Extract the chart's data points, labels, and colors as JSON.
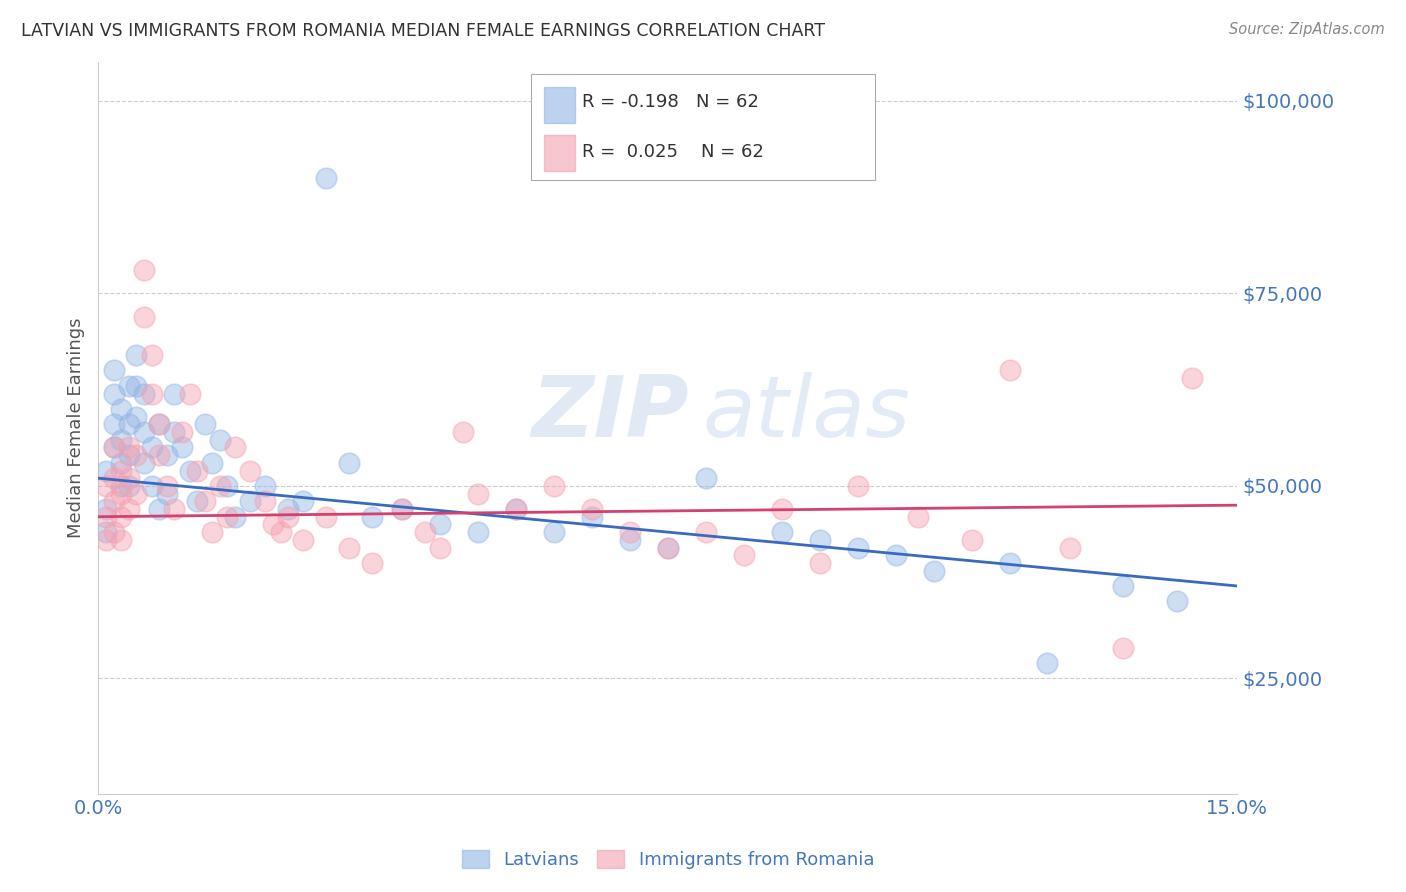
{
  "title": "LATVIAN VS IMMIGRANTS FROM ROMANIA MEDIAN FEMALE EARNINGS CORRELATION CHART",
  "source": "Source: ZipAtlas.com",
  "ylabel": "Median Female Earnings",
  "xlim": [
    0.0,
    0.15
  ],
  "ylim": [
    10000,
    105000
  ],
  "background_color": "#ffffff",
  "grid_color": "#cccccc",
  "blue_color": "#92b4e3",
  "pink_color": "#f4a0b0",
  "blue_line_color": "#3a6abf",
  "pink_line_color": "#d44070",
  "axis_label_color": "#4477bb",
  "watermark_color": "#dde8f4",
  "legend_r_blue": "R = -0.198",
  "legend_n_blue": "N = 62",
  "legend_r_pink": "R =  0.025",
  "legend_n_pink": "N = 62",
  "legend_label_blue": "Latvians",
  "legend_label_pink": "Immigrants from Romania",
  "latvians_x": [
    0.001,
    0.001,
    0.001,
    0.002,
    0.002,
    0.002,
    0.002,
    0.003,
    0.003,
    0.003,
    0.003,
    0.004,
    0.004,
    0.004,
    0.004,
    0.005,
    0.005,
    0.005,
    0.006,
    0.006,
    0.006,
    0.007,
    0.007,
    0.008,
    0.008,
    0.009,
    0.009,
    0.01,
    0.01,
    0.011,
    0.012,
    0.013,
    0.014,
    0.015,
    0.016,
    0.017,
    0.018,
    0.02,
    0.022,
    0.025,
    0.027,
    0.03,
    0.033,
    0.036,
    0.04,
    0.045,
    0.05,
    0.055,
    0.06,
    0.065,
    0.07,
    0.075,
    0.08,
    0.09,
    0.095,
    0.1,
    0.105,
    0.11,
    0.12,
    0.125,
    0.135,
    0.142
  ],
  "latvians_y": [
    52000,
    47000,
    44000,
    65000,
    62000,
    58000,
    55000,
    60000,
    56000,
    53000,
    50000,
    63000,
    58000,
    54000,
    50000,
    67000,
    63000,
    59000,
    62000,
    57000,
    53000,
    55000,
    50000,
    58000,
    47000,
    54000,
    49000,
    62000,
    57000,
    55000,
    52000,
    48000,
    58000,
    53000,
    56000,
    50000,
    46000,
    48000,
    50000,
    47000,
    48000,
    90000,
    53000,
    46000,
    47000,
    45000,
    44000,
    47000,
    44000,
    46000,
    43000,
    42000,
    51000,
    44000,
    43000,
    42000,
    41000,
    39000,
    40000,
    27000,
    37000,
    35000
  ],
  "romanian_x": [
    0.001,
    0.001,
    0.001,
    0.002,
    0.002,
    0.002,
    0.002,
    0.003,
    0.003,
    0.003,
    0.003,
    0.004,
    0.004,
    0.004,
    0.005,
    0.005,
    0.006,
    0.006,
    0.007,
    0.007,
    0.008,
    0.008,
    0.009,
    0.01,
    0.011,
    0.012,
    0.013,
    0.014,
    0.015,
    0.016,
    0.017,
    0.018,
    0.02,
    0.022,
    0.023,
    0.024,
    0.025,
    0.027,
    0.03,
    0.033,
    0.036,
    0.04,
    0.043,
    0.045,
    0.048,
    0.05,
    0.055,
    0.06,
    0.065,
    0.07,
    0.075,
    0.08,
    0.085,
    0.09,
    0.095,
    0.1,
    0.108,
    0.115,
    0.12,
    0.128,
    0.135,
    0.144
  ],
  "romanian_y": [
    50000,
    46000,
    43000,
    55000,
    51000,
    48000,
    44000,
    52000,
    49000,
    46000,
    43000,
    55000,
    51000,
    47000,
    54000,
    49000,
    78000,
    72000,
    67000,
    62000,
    58000,
    54000,
    50000,
    47000,
    57000,
    62000,
    52000,
    48000,
    44000,
    50000,
    46000,
    55000,
    52000,
    48000,
    45000,
    44000,
    46000,
    43000,
    46000,
    42000,
    40000,
    47000,
    44000,
    42000,
    57000,
    49000,
    47000,
    50000,
    47000,
    44000,
    42000,
    44000,
    41000,
    47000,
    40000,
    50000,
    46000,
    43000,
    65000,
    42000,
    29000,
    64000
  ]
}
